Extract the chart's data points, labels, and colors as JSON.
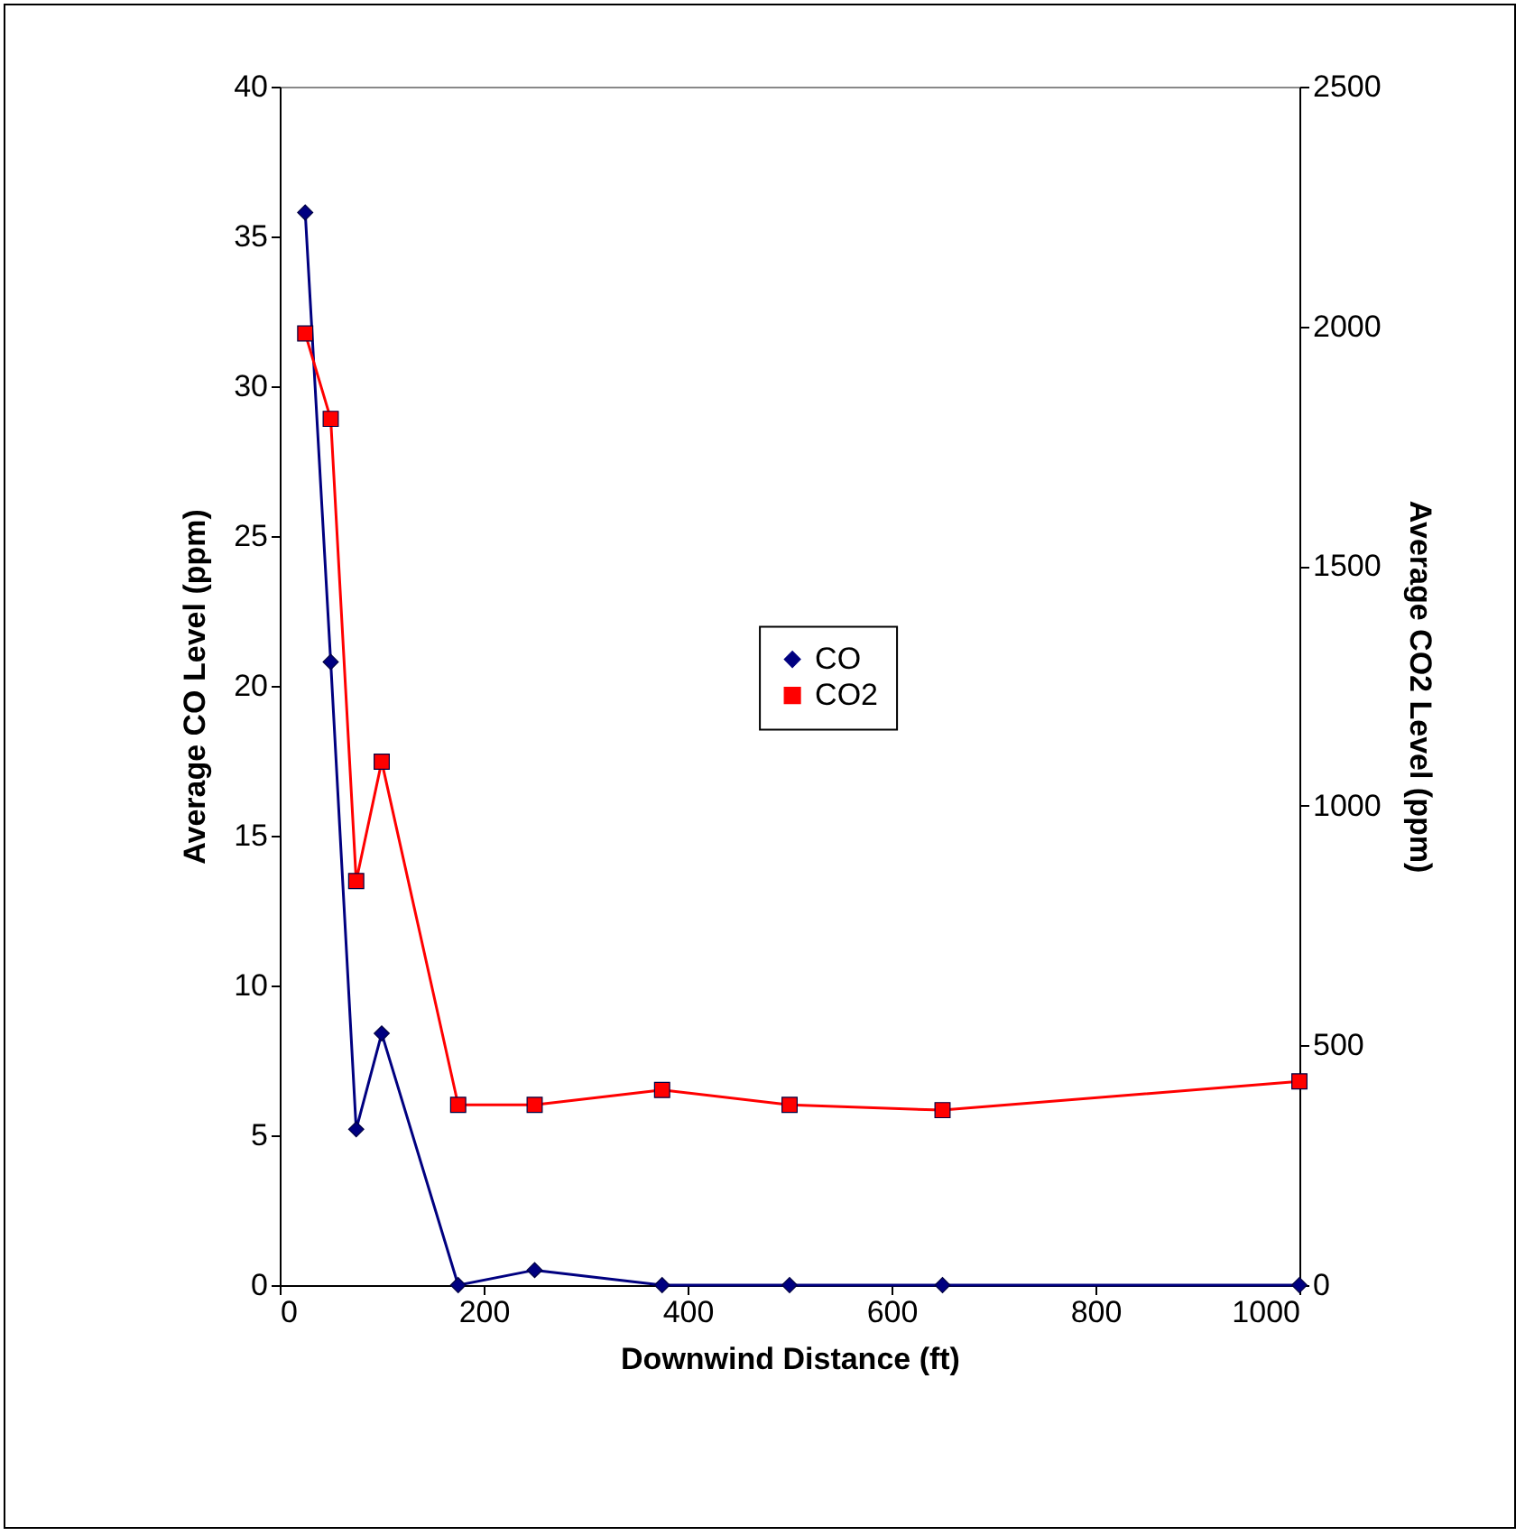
{
  "chart_data": {
    "type": "line",
    "xlabel": "Downwind Distance (ft)",
    "ylabel": "Average CO Level (ppm)",
    "y2label": "Average CO2 Level (ppm)",
    "x": [
      25,
      50,
      75,
      100,
      175,
      250,
      375,
      500,
      650,
      1000
    ],
    "xlim": [
      0,
      1000
    ],
    "xticks": [
      0,
      200,
      400,
      600,
      800,
      1000
    ],
    "ylim": [
      0,
      40
    ],
    "yticks": [
      0,
      5,
      10,
      15,
      20,
      25,
      30,
      35,
      40
    ],
    "y2lim": [
      0,
      2500
    ],
    "y2ticks": [
      0,
      500,
      1000,
      1500,
      2000,
      2500
    ],
    "grid": false,
    "legend": "center",
    "series": [
      {
        "name": "CO",
        "color": "#000080",
        "marker": "diamond",
        "values": [
          35.8,
          20.8,
          5.2,
          8.4,
          0,
          0.5,
          0,
          0,
          0,
          0
        ]
      },
      {
        "name": "CO2",
        "color": "#ff0000",
        "marker": "square",
        "axis": "y2",
        "values": [
          1985,
          1807,
          843,
          1092,
          376,
          376,
          407,
          376,
          365,
          425
        ]
      }
    ]
  }
}
